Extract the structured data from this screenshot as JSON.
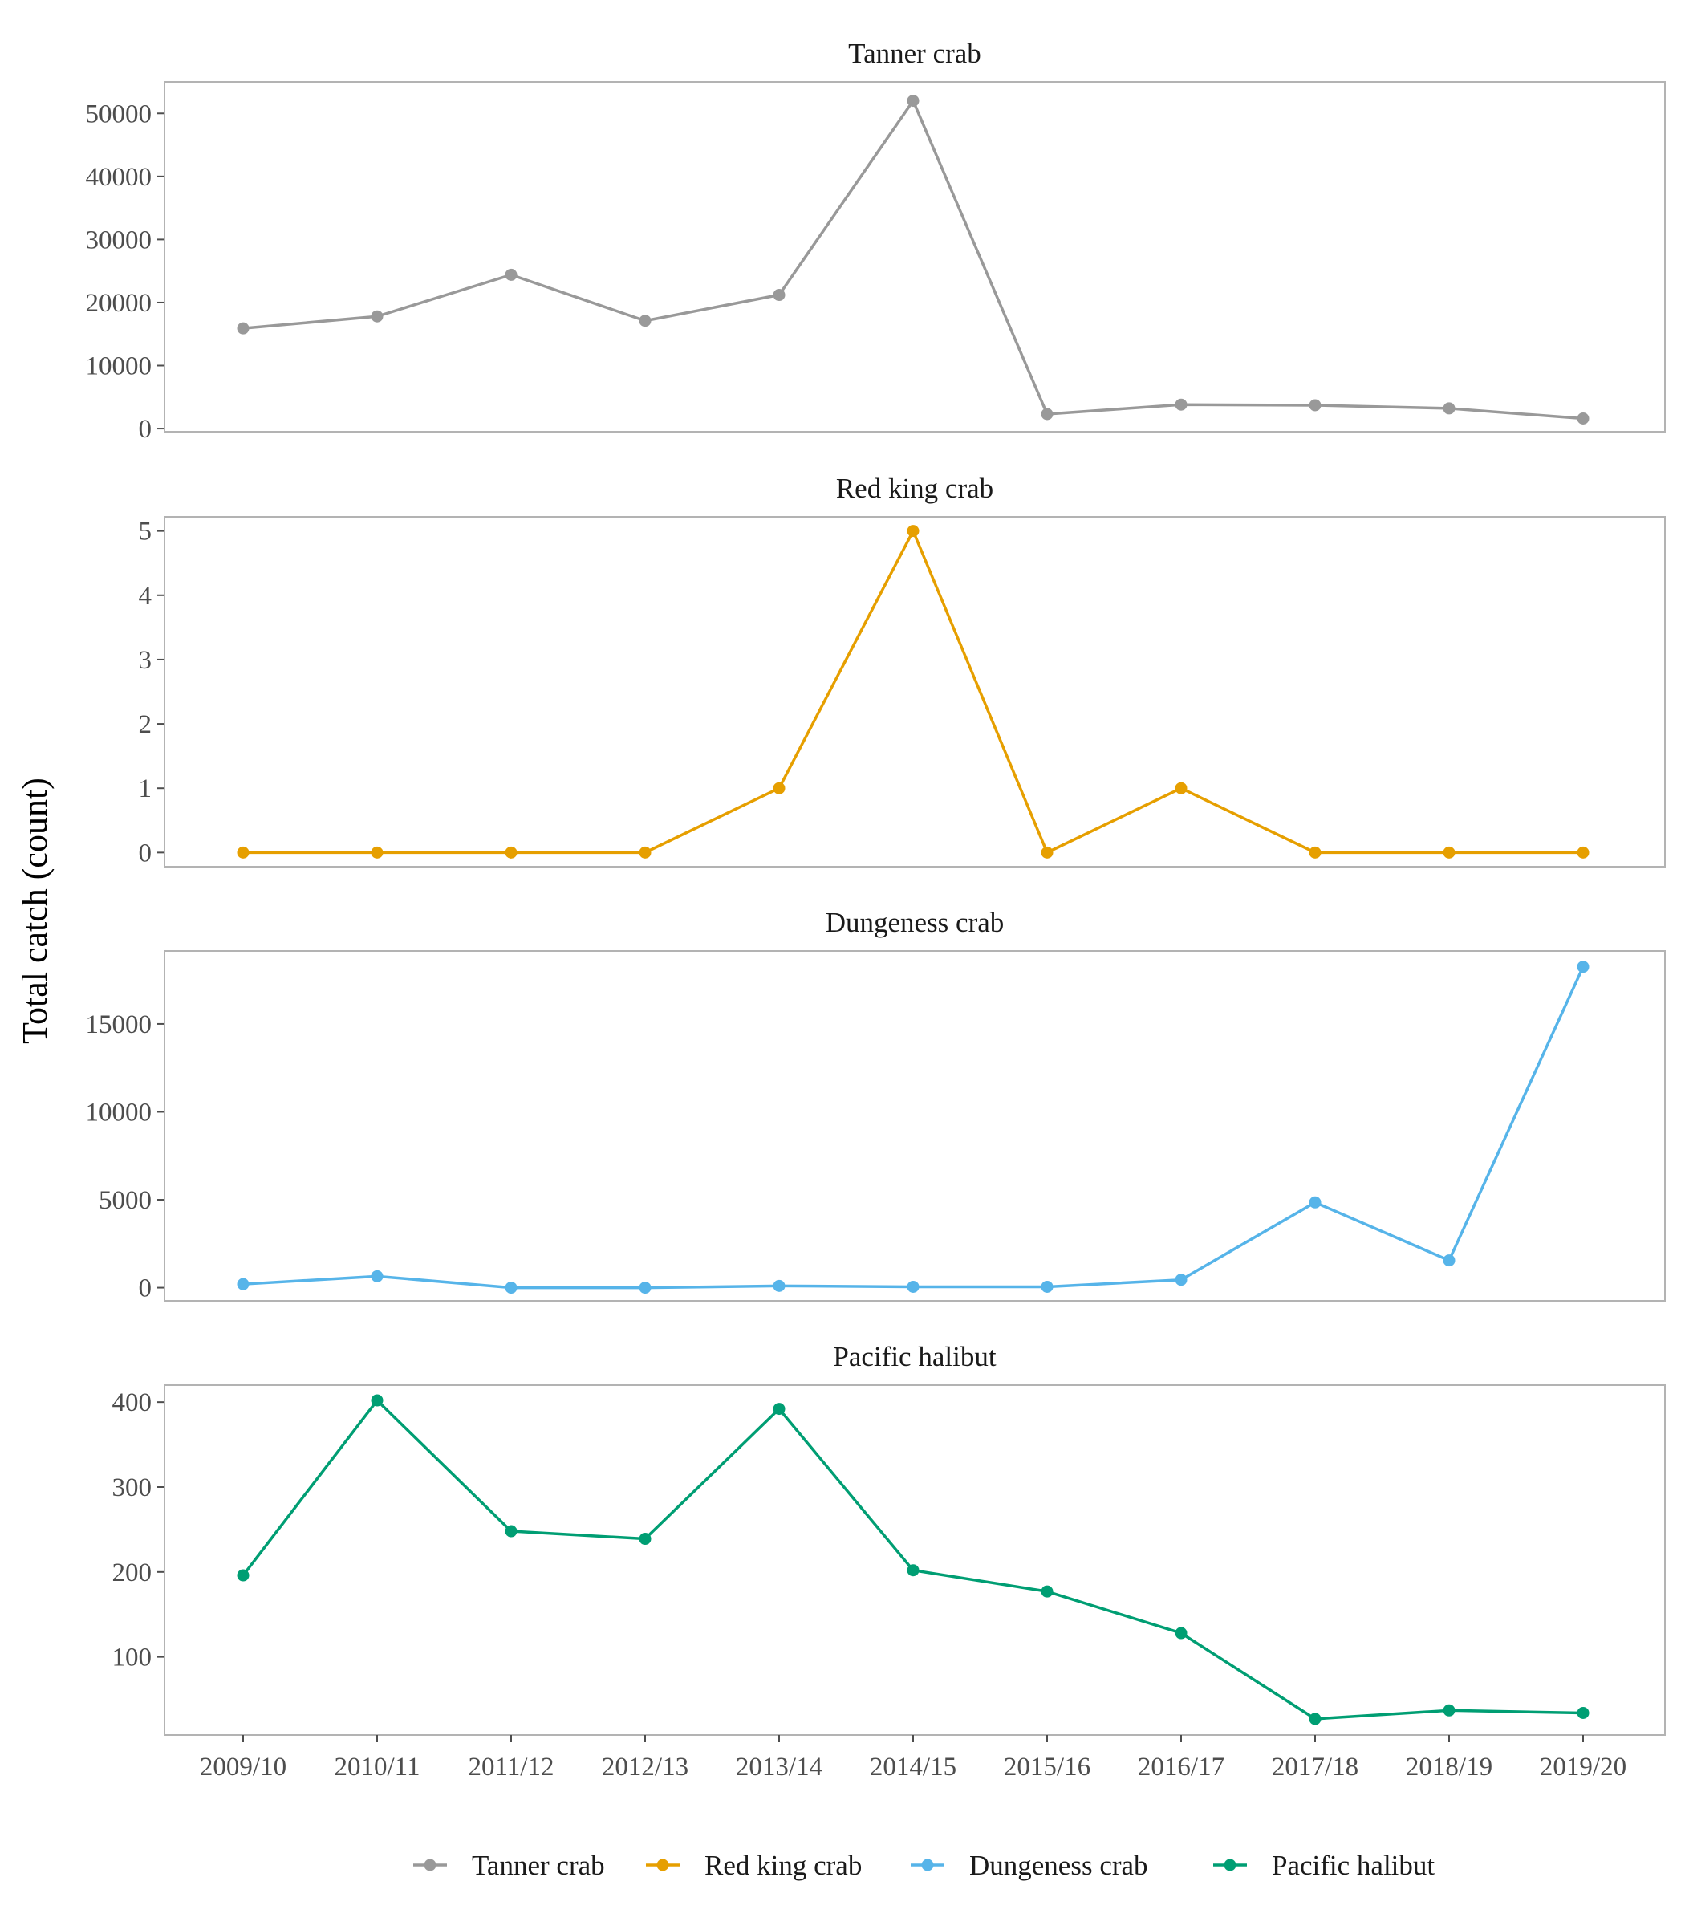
{
  "chart_data": {
    "type": "line",
    "ylabel": "Total catch (count)",
    "xlabel": "",
    "categories": [
      "2009/10",
      "2010/11",
      "2011/12",
      "2012/13",
      "2013/14",
      "2014/15",
      "2015/16",
      "2016/17",
      "2017/18",
      "2018/19",
      "2019/20"
    ],
    "grid": false,
    "legend_position": "bottom",
    "panels": [
      {
        "title": "Tanner crab",
        "color": "#999999",
        "values": [
          15900,
          17800,
          24400,
          17100,
          21200,
          52000,
          2300,
          3800,
          3700,
          3200,
          1600
        ],
        "ylim": [
          -500,
          55000
        ],
        "yticks": [
          0,
          10000,
          20000,
          30000,
          40000,
          50000
        ]
      },
      {
        "title": "Red king crab",
        "color": "#E69F00",
        "values": [
          0,
          0,
          0,
          0,
          1,
          5,
          0,
          1,
          0,
          0,
          0
        ],
        "ylim": [
          -0.22,
          5.22
        ],
        "yticks": [
          0,
          1,
          2,
          3,
          4,
          5
        ]
      },
      {
        "title": "Dungeness crab",
        "color": "#56B4E9",
        "values": [
          200,
          650,
          0,
          0,
          100,
          50,
          50,
          450,
          4850,
          1550,
          18250
        ],
        "ylim": [
          -750,
          19150
        ],
        "yticks": [
          0,
          5000,
          10000,
          15000
        ]
      },
      {
        "title": "Pacific halibut",
        "color": "#009E73",
        "values": [
          196,
          402,
          248,
          239,
          392,
          202,
          177,
          128,
          27,
          37,
          34
        ],
        "ylim": [
          8,
          420
        ],
        "yticks": [
          100,
          200,
          300,
          400
        ]
      }
    ],
    "legend": [
      "Tanner crab",
      "Red king crab",
      "Dungeness crab",
      "Pacific halibut"
    ]
  }
}
